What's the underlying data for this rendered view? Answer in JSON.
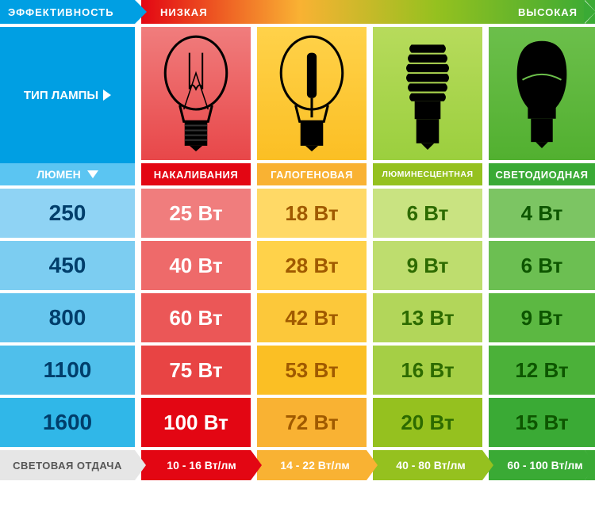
{
  "header": {
    "efficiency_label": "ЭФФЕКТИВНОСТЬ",
    "low_label": "НИЗКАЯ",
    "high_label": "ВЫСОКАЯ",
    "efficiency_bg": "#009fe3",
    "gradient_from": "#e30613",
    "gradient_to": "#3aaa35"
  },
  "side": {
    "type_label": "ТИП ЛАМПЫ",
    "lumen_label": "ЛЮМЕН",
    "side_dark": "#009fe3",
    "side_light": "#5bc5f2",
    "text_color": "#ffffff"
  },
  "columns": [
    {
      "key": "incandescent",
      "name": "НАКАЛИВАНИЯ",
      "header_bg": "#f07d7d",
      "header_deep": "#e84749",
      "label_bg": "#e30613",
      "range_label": "10 - 16 Вт/лм",
      "cells_bg": [
        "#f07d7d",
        "#ee6a6a",
        "#eb5757",
        "#e84444",
        "#e30613"
      ],
      "text_color": "#ffffff",
      "footer_color": "#e30613"
    },
    {
      "key": "halogen",
      "name": "ГАЛОГЕНОВАЯ",
      "header_bg": "#ffd24a",
      "header_deep": "#fbbf24",
      "label_bg": "#f9b233",
      "range_label": "14 - 22 Вт/лм",
      "cells_bg": [
        "#ffd966",
        "#ffd24a",
        "#fcc83a",
        "#fbbf24",
        "#f9b233"
      ],
      "text_color": "#a05a00",
      "footer_color": "#f9b233"
    },
    {
      "key": "cfl",
      "name": "ЛЮМИНЕСЦЕНТНАЯ",
      "header_bg": "#b7db5c",
      "header_deep": "#9bcf3e",
      "label_bg": "#95c11f",
      "range_label": "40 - 80 Вт/лм",
      "cells_bg": [
        "#c9e381",
        "#bedd6e",
        "#b2d65a",
        "#a5cf45",
        "#95c11f"
      ],
      "text_color": "#2d6b00",
      "footer_color": "#95c11f"
    },
    {
      "key": "led",
      "name": "СВЕТОДИОДНАЯ",
      "header_bg": "#6cbf4b",
      "header_deep": "#52b030",
      "label_bg": "#3aaa35",
      "range_label": "60 - 100 Вт/лм",
      "cells_bg": [
        "#7cc563",
        "#6cbf52",
        "#5cb842",
        "#4bb139",
        "#3aaa35"
      ],
      "text_color": "#0d5600",
      "footer_color": "#3aaa35"
    }
  ],
  "lumen": {
    "values": [
      "250",
      "450",
      "800",
      "1100",
      "1600"
    ],
    "bg": [
      "#8fd3f4",
      "#7ccdf1",
      "#67c6ee",
      "#4fbfeb",
      "#30b7e8"
    ],
    "text_color": "#003e6b"
  },
  "rows": [
    {
      "inc": "25 Вт",
      "hal": "18 Вт",
      "cfl": "6 Вт",
      "led": "4 Вт"
    },
    {
      "inc": "40 Вт",
      "hal": "28 Вт",
      "cfl": "9 Вт",
      "led": "6 Вт"
    },
    {
      "inc": "60 Вт",
      "hal": "42 Вт",
      "cfl": "13 Вт",
      "led": "9 Вт"
    },
    {
      "inc": "75 Вт",
      "hal": "53 Вт",
      "cfl": "16 Вт",
      "led": "12 Вт"
    },
    {
      "inc": "100 Вт",
      "hal": "72 Вт",
      "cfl": "20 Вт",
      "led": "15 Вт"
    }
  ],
  "footer": {
    "label": "СВЕТОВАЯ ОТДАЧА",
    "bg_light": "#e6e6e6",
    "text_color": "#555555"
  },
  "typography": {
    "lumen_fontsize": 28,
    "watt_fontsize": 26,
    "sub_fontsize": 13,
    "header_fontsize": 14
  }
}
